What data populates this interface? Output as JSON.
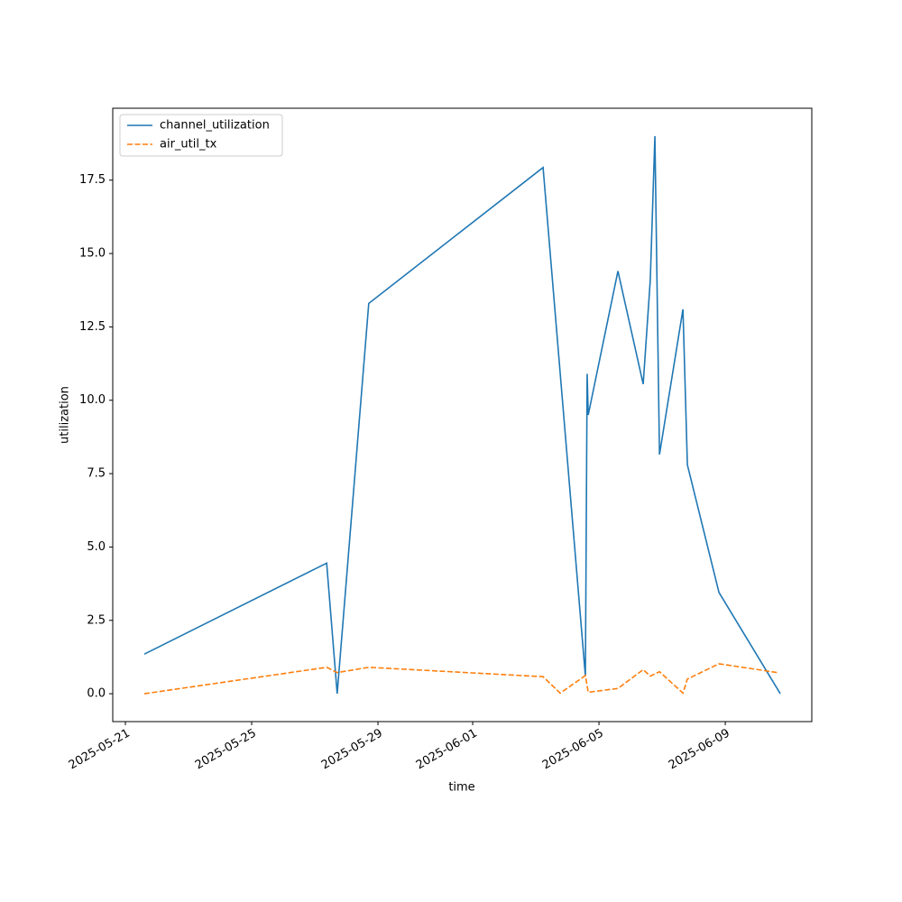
{
  "chart_data": {
    "type": "line",
    "xlabel": "time",
    "ylabel": "utilization",
    "series": [
      {
        "name": "channel_utilization",
        "color": "#1f77b4",
        "dash": "solid",
        "x": [
          "2025-05-21 14:24",
          "2025-05-27 09:00",
          "2025-05-27 17:00",
          "2025-05-28 17:00",
          "2025-06-03 05:30",
          "2025-06-04 13:40",
          "2025-06-04 15:00",
          "2025-06-04 15:50",
          "2025-06-05 14:24",
          "2025-06-06 09:36",
          "2025-06-06 15:00",
          "2025-06-06 18:30",
          "2025-06-06 22:00",
          "2025-06-07 15:50",
          "2025-06-07 19:12",
          "2025-06-08 19:12",
          "2025-06-10 17:50"
        ],
        "values": [
          1.35,
          4.45,
          0,
          13.3,
          17.93,
          0.6,
          10.9,
          9.5,
          14.4,
          10.55,
          14.1,
          19.0,
          8.15,
          13.1,
          7.8,
          3.45,
          0
        ]
      },
      {
        "name": "air_util_tx",
        "color": "#ff7f0e",
        "dash": "dashed",
        "x": [
          "2025-05-21 14:24",
          "2025-05-27 09:00",
          "2025-05-27 17:00",
          "2025-05-28 17:00",
          "2025-06-03 05:30",
          "2025-06-03 18:30",
          "2025-06-04 13:40",
          "2025-06-04 15:50",
          "2025-06-05 14:24",
          "2025-06-06 09:36",
          "2025-06-06 15:00",
          "2025-06-06 22:00",
          "2025-06-07 15:50",
          "2025-06-07 19:12",
          "2025-06-08 19:12",
          "2025-06-10 15:50"
        ],
        "values": [
          0,
          0.9,
          0.72,
          0.9,
          0.58,
          0.02,
          0.62,
          0.05,
          0.18,
          0.82,
          0.6,
          0.75,
          0.02,
          0.5,
          1.02,
          0.72
        ]
      }
    ],
    "xlim": [
      "2025-05-20 14:24",
      "2025-06-11 17:46"
    ],
    "xticks": [
      "2025-05-21",
      "2025-05-25",
      "2025-05-29",
      "2025-06-01",
      "2025-06-05",
      "2025-06-09"
    ],
    "ylim": [
      -0.95,
      19.95
    ],
    "yticks": [
      {
        "value": 0,
        "label": "0.0"
      },
      2.5,
      {
        "value": 5,
        "label": "5.0"
      },
      7.5,
      {
        "value": 10,
        "label": "10.0"
      },
      12.5,
      {
        "value": 15,
        "label": "15.0"
      },
      17.5
    ],
    "grid": false,
    "legend": "upper left"
  }
}
